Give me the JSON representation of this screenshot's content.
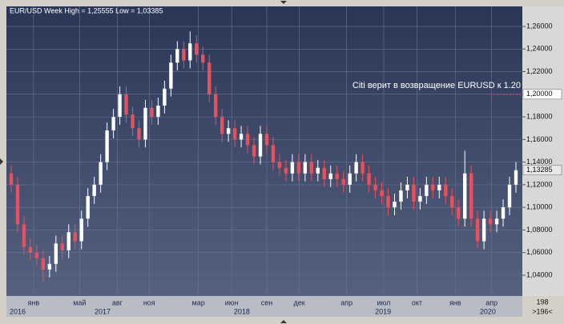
{
  "chart_data": {
    "type": "candlestick",
    "title": "EUR/USD Week High = 1,25555 Low = 1,03385",
    "annotation": "Citi верит в возвращение EURUSD к 1.20",
    "up_color": "#ffffff",
    "down_color": "#e8505e",
    "open": [
      1.13,
      1.12,
      1.085,
      1.065,
      1.06,
      1.055,
      1.045,
      1.05,
      1.068,
      1.062,
      1.078,
      1.07,
      1.09,
      1.11,
      1.12,
      1.14,
      1.168,
      1.18,
      1.2,
      1.182,
      1.17,
      1.16,
      1.188,
      1.18,
      1.19,
      1.205,
      1.228,
      1.24,
      1.23,
      1.245,
      1.235,
      1.228,
      1.2,
      1.18,
      1.165,
      1.17,
      1.16,
      1.165,
      1.155,
      1.145,
      1.165,
      1.155,
      1.14,
      1.135,
      1.13,
      1.14,
      1.13,
      1.14,
      1.13,
      1.135,
      1.125,
      1.13,
      1.125,
      1.12,
      1.13,
      1.14,
      1.13,
      1.12,
      1.115,
      1.11,
      1.1,
      1.105,
      1.115,
      1.12,
      1.105,
      1.11,
      1.12,
      1.115,
      1.12,
      1.11,
      1.1,
      1.09,
      1.13,
      1.09,
      1.07,
      1.09,
      1.085,
      1.09,
      1.1,
      1.12
    ],
    "high": [
      1.137,
      1.127,
      1.092,
      1.072,
      1.067,
      1.062,
      1.057,
      1.075,
      1.075,
      1.085,
      1.085,
      1.097,
      1.117,
      1.127,
      1.147,
      1.175,
      1.187,
      1.207,
      1.207,
      1.189,
      1.177,
      1.195,
      1.195,
      1.197,
      1.212,
      1.235,
      1.247,
      1.247,
      1.25555,
      1.252,
      1.242,
      1.235,
      1.207,
      1.187,
      1.177,
      1.177,
      1.172,
      1.172,
      1.162,
      1.172,
      1.172,
      1.162,
      1.147,
      1.142,
      1.147,
      1.147,
      1.147,
      1.147,
      1.142,
      1.142,
      1.137,
      1.137,
      1.132,
      1.137,
      1.147,
      1.147,
      1.137,
      1.127,
      1.122,
      1.117,
      1.112,
      1.122,
      1.127,
      1.127,
      1.117,
      1.127,
      1.127,
      1.127,
      1.127,
      1.117,
      1.107,
      1.15,
      1.137,
      1.097,
      1.097,
      1.097,
      1.097,
      1.107,
      1.127,
      1.14
    ],
    "low": [
      1.113,
      1.078,
      1.058,
      1.053,
      1.048,
      1.03385,
      1.038,
      1.043,
      1.055,
      1.055,
      1.063,
      1.063,
      1.083,
      1.103,
      1.113,
      1.133,
      1.161,
      1.173,
      1.175,
      1.163,
      1.153,
      1.153,
      1.173,
      1.173,
      1.183,
      1.198,
      1.221,
      1.223,
      1.223,
      1.228,
      1.221,
      1.193,
      1.173,
      1.158,
      1.158,
      1.153,
      1.153,
      1.148,
      1.138,
      1.138,
      1.148,
      1.133,
      1.128,
      1.123,
      1.123,
      1.123,
      1.123,
      1.123,
      1.123,
      1.118,
      1.118,
      1.118,
      1.113,
      1.113,
      1.123,
      1.123,
      1.113,
      1.108,
      1.103,
      1.093,
      1.093,
      1.098,
      1.108,
      1.098,
      1.098,
      1.103,
      1.108,
      1.108,
      1.103,
      1.093,
      1.083,
      1.083,
      1.083,
      1.064,
      1.063,
      1.078,
      1.078,
      1.083,
      1.093,
      1.113
    ],
    "close": [
      1.12,
      1.085,
      1.065,
      1.06,
      1.055,
      1.045,
      1.05,
      1.068,
      1.062,
      1.078,
      1.07,
      1.09,
      1.11,
      1.12,
      1.14,
      1.168,
      1.18,
      1.2,
      1.182,
      1.17,
      1.16,
      1.188,
      1.18,
      1.19,
      1.205,
      1.228,
      1.24,
      1.23,
      1.245,
      1.235,
      1.228,
      1.2,
      1.18,
      1.165,
      1.17,
      1.16,
      1.165,
      1.155,
      1.145,
      1.165,
      1.155,
      1.14,
      1.135,
      1.13,
      1.14,
      1.13,
      1.14,
      1.13,
      1.135,
      1.125,
      1.13,
      1.125,
      1.12,
      1.13,
      1.14,
      1.13,
      1.12,
      1.115,
      1.11,
      1.1,
      1.105,
      1.115,
      1.12,
      1.105,
      1.11,
      1.12,
      1.115,
      1.12,
      1.11,
      1.1,
      1.09,
      1.13,
      1.09,
      1.07,
      1.09,
      1.085,
      1.09,
      1.1,
      1.12,
      1.13285
    ],
    "xlim": [
      -0.5,
      79.5
    ],
    "xticks": [
      {
        "value": 3.5,
        "label": "янв"
      },
      {
        "value": 10.7,
        "label": "май"
      },
      {
        "value": 16.6,
        "label": "авг"
      },
      {
        "value": 21.6,
        "label": "ноя"
      },
      {
        "value": 29.3,
        "label": "мар"
      },
      {
        "value": 34.5,
        "label": "июн"
      },
      {
        "value": 40,
        "label": "сен"
      },
      {
        "value": 45.1,
        "label": "дек"
      },
      {
        "value": 52.5,
        "label": "апр"
      },
      {
        "value": 58.3,
        "label": "июл"
      },
      {
        "value": 63.5,
        "label": "окт"
      },
      {
        "value": 69.5,
        "label": "янв"
      },
      {
        "value": 75.2,
        "label": "апр"
      }
    ],
    "year_ticks": [
      {
        "value": 1.0,
        "label": "2016"
      },
      {
        "value": 14.3,
        "label": "2017"
      },
      {
        "value": 36.1,
        "label": "2018"
      },
      {
        "value": 58.2,
        "label": "2019"
      },
      {
        "value": 74.6,
        "label": "2020"
      }
    ],
    "ylim": [
      1.0216,
      1.2763
    ],
    "yticks": [
      {
        "value": 1.04,
        "label": "1,04000"
      },
      {
        "value": 1.06,
        "label": "1,06000"
      },
      {
        "value": 1.08,
        "label": "1,08000"
      },
      {
        "value": 1.1,
        "label": "1,10000"
      },
      {
        "value": 1.12,
        "label": "1,12000"
      },
      {
        "value": 1.14,
        "label": "1,14000"
      },
      {
        "value": 1.16,
        "label": "1,16000"
      },
      {
        "value": 1.18,
        "label": "1,18000"
      },
      {
        "value": 1.2,
        "label": "1,20000"
      },
      {
        "value": 1.22,
        "label": "1,22000"
      },
      {
        "value": 1.24,
        "label": "1,24000"
      },
      {
        "value": 1.26,
        "label": "1,26000"
      }
    ],
    "markers": [
      {
        "value": 1.2,
        "label": "1,20000",
        "color": "#ffffff"
      },
      {
        "value": 1.13285,
        "label": "1,13285",
        "color": "#e8e8e8"
      }
    ],
    "grid": true,
    "bar_count": "198",
    "visible_range": ">196<"
  }
}
